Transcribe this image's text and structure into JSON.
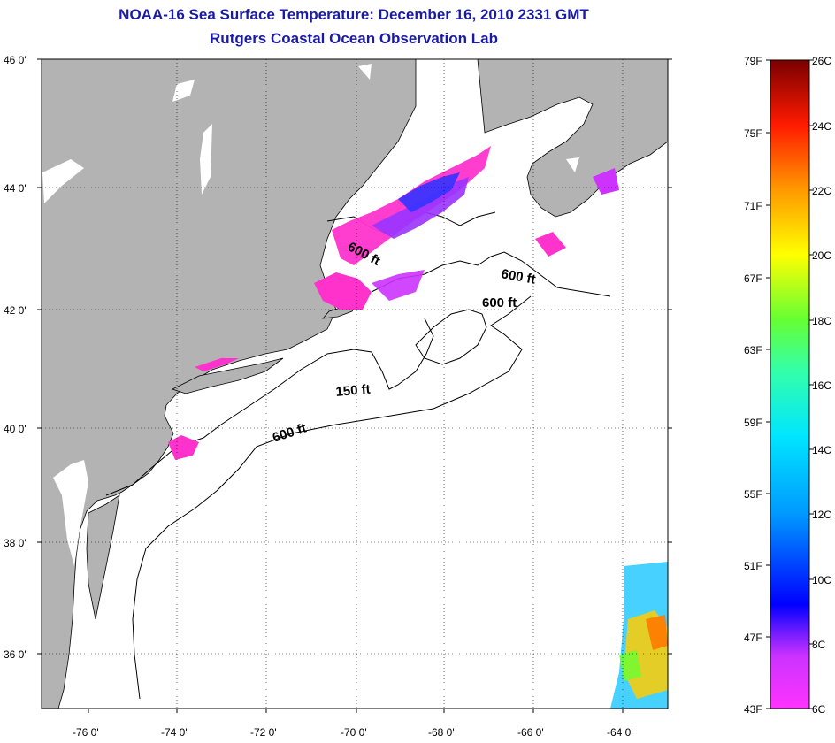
{
  "title": "NOAA-16 Sea Surface Temperature:  December 16, 2010 2331 GMT",
  "subtitle": "Rutgers Coastal Ocean Observation Lab",
  "map": {
    "lat_labels": [
      "46 0'",
      "44 0'",
      "42 0'",
      "40 0'",
      "38 0'",
      "36 0'"
    ],
    "lon_labels": [
      "-76 0'",
      "-74 0'",
      "-72 0'",
      "-70 0'",
      "-68 0'",
      "-66 0'",
      "-64 0'"
    ],
    "contour_labels": [
      "600 ft",
      "600 ft",
      "600 ft",
      "150 ft",
      "600 ft"
    ],
    "colors": {
      "land": "#b3b3b3",
      "ocean": "#ffffff",
      "cold_sst": "#ff33cc",
      "cool_sst": "#9933ff",
      "very_cool_sst": "#3333ff"
    }
  },
  "colorbar": {
    "fahrenheit": [
      "79F",
      "75F",
      "71F",
      "67F",
      "63F",
      "59F",
      "55F",
      "51F",
      "47F",
      "43F"
    ],
    "celsius": [
      "26C",
      "24C",
      "22C",
      "20C",
      "18C",
      "16C",
      "14C",
      "12C",
      "10C",
      "8C",
      "6C"
    ]
  }
}
